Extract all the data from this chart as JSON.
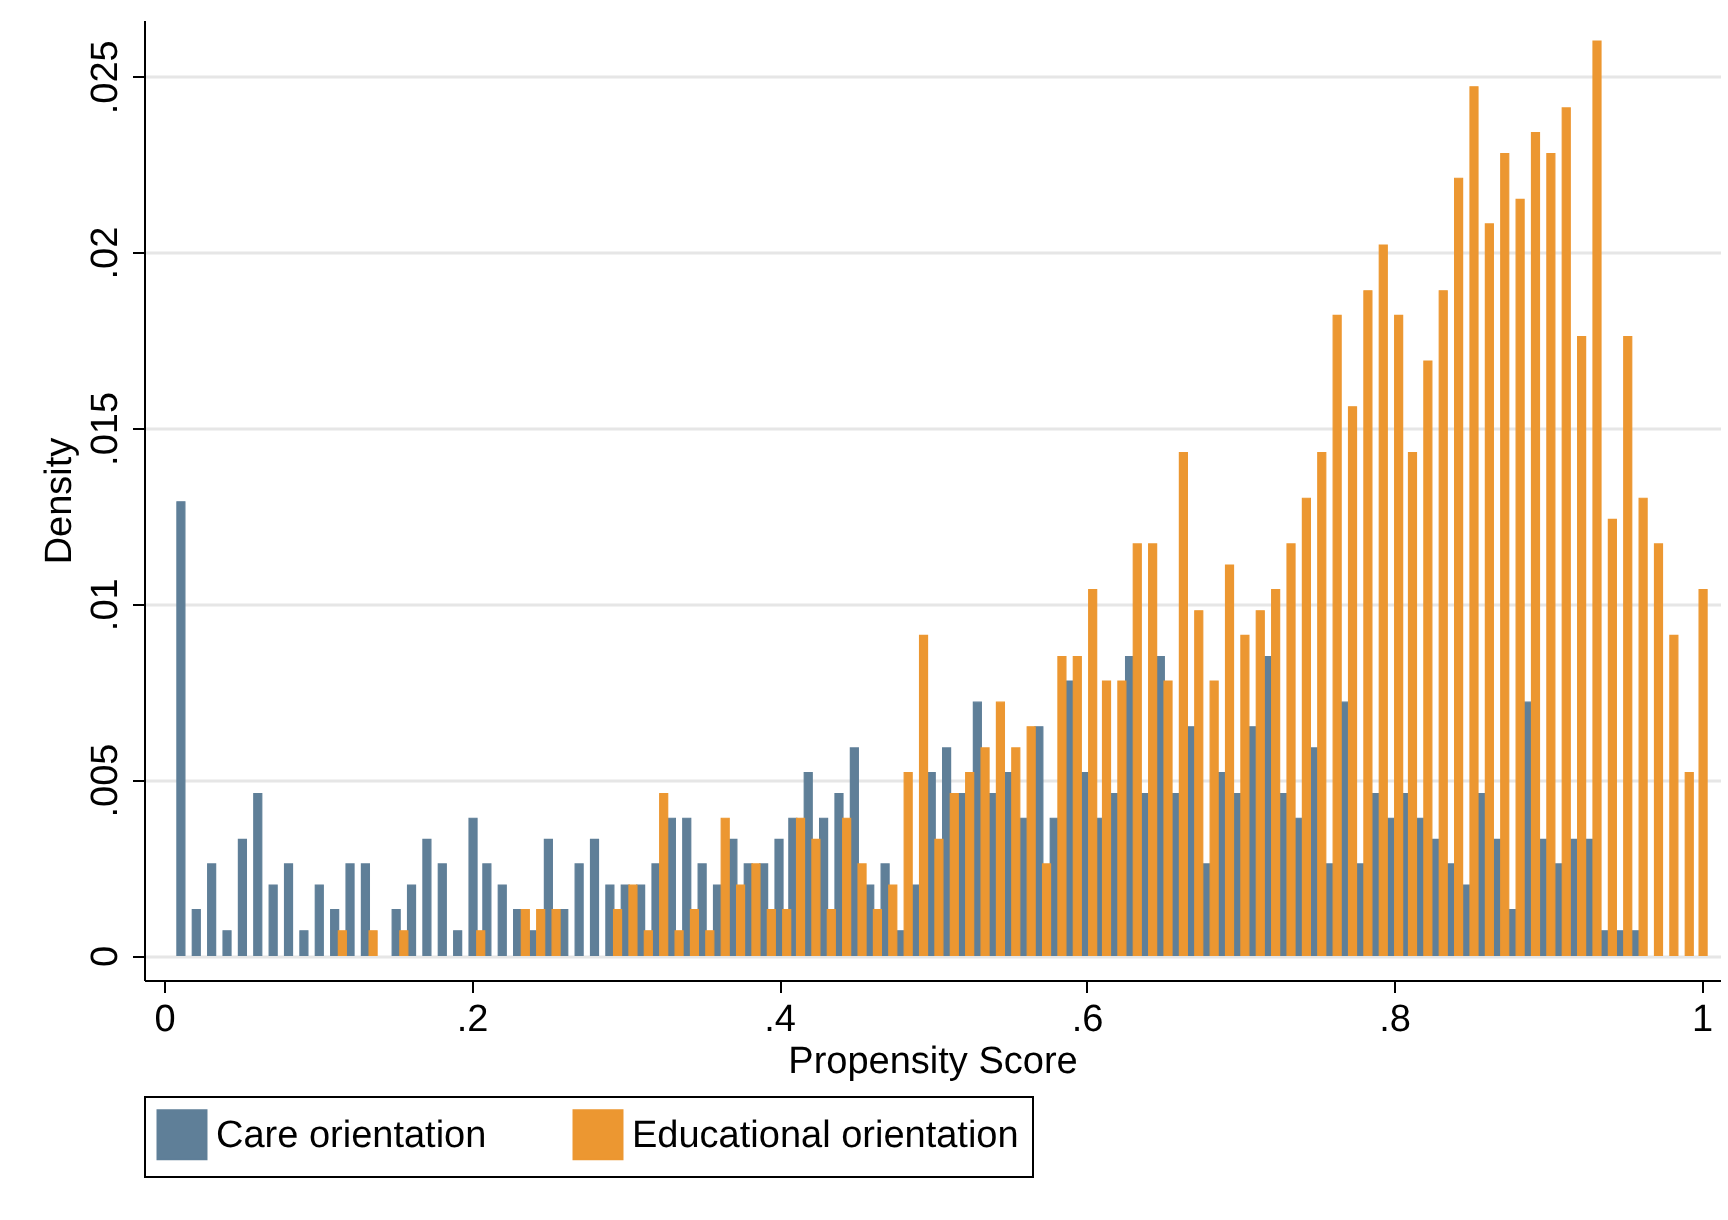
{
  "chart_data": {
    "type": "bar",
    "xlabel": "Propensity Score",
    "ylabel": "Density",
    "xlim": [
      -0.013,
      1.012
    ],
    "ylim": [
      -0.0007,
      0.0266
    ],
    "xticks": [
      0,
      {
        "value": 0.2,
        "label": ".2"
      },
      {
        "value": 0.4,
        "label": ".4"
      },
      {
        "value": 0.6,
        "label": ".6"
      },
      {
        "value": 0.8,
        "label": ".8"
      },
      1
    ],
    "yticks": [
      0,
      {
        "value": 0.005,
        "label": ".005"
      },
      {
        "value": 0.01,
        "label": ".01"
      },
      {
        "value": 0.015,
        "label": ".015"
      },
      {
        "value": 0.02,
        "label": ".02"
      },
      {
        "value": 0.025,
        "label": ".025"
      }
    ],
    "grid": "y",
    "legend": "bottom",
    "series": [
      {
        "name": "Care orientation",
        "color": "#5f7f98",
        "x": [
          0.011,
          0.021,
          0.031,
          0.041,
          0.051,
          0.061,
          0.071,
          0.081,
          0.091,
          0.101,
          0.111,
          0.121,
          0.131,
          0.151,
          0.161,
          0.171,
          0.181,
          0.191,
          0.201,
          0.21,
          0.22,
          0.23,
          0.24,
          0.25,
          0.26,
          0.27,
          0.28,
          0.29,
          0.3,
          0.31,
          0.32,
          0.33,
          0.34,
          0.35,
          0.36,
          0.37,
          0.38,
          0.39,
          0.4,
          0.409,
          0.419,
          0.429,
          0.439,
          0.449,
          0.459,
          0.469,
          0.479,
          0.489,
          0.499,
          0.509,
          0.519,
          0.529,
          0.539,
          0.549,
          0.559,
          0.569,
          0.579,
          0.589,
          0.599,
          0.608,
          0.618,
          0.628,
          0.638,
          0.648,
          0.658,
          0.668,
          0.678,
          0.688,
          0.698,
          0.708,
          0.718,
          0.728,
          0.738,
          0.748,
          0.758,
          0.768,
          0.778,
          0.788,
          0.798,
          0.807,
          0.817,
          0.827,
          0.837,
          0.847,
          0.857,
          0.867,
          0.877,
          0.887,
          0.897,
          0.907,
          0.917,
          0.927,
          0.937,
          0.947,
          0.957
        ],
        "values": [
          0.0129,
          0.0013,
          0.0026,
          0.0007,
          0.0033,
          0.0046,
          0.002,
          0.0026,
          0.0007,
          0.002,
          0.0013,
          0.0026,
          0.0026,
          0.0013,
          0.002,
          0.0033,
          0.0026,
          0.0007,
          0.0039,
          0.0026,
          0.002,
          0.0013,
          0.0007,
          0.0033,
          0.0013,
          0.0026,
          0.0033,
          0.002,
          0.002,
          0.002,
          0.0026,
          0.0039,
          0.0039,
          0.0026,
          0.002,
          0.0033,
          0.0026,
          0.0026,
          0.0033,
          0.0039,
          0.0052,
          0.0039,
          0.0046,
          0.0059,
          0.002,
          0.0026,
          0.0007,
          0.002,
          0.0052,
          0.0059,
          0.0046,
          0.0072,
          0.0046,
          0.0052,
          0.0039,
          0.0065,
          0.0039,
          0.0078,
          0.0052,
          0.0039,
          0.0046,
          0.0085,
          0.0046,
          0.0085,
          0.0046,
          0.0065,
          0.0026,
          0.0052,
          0.0046,
          0.0065,
          0.0085,
          0.0046,
          0.0039,
          0.0059,
          0.0026,
          0.0072,
          0.0026,
          0.0046,
          0.0039,
          0.0046,
          0.0039,
          0.0033,
          0.0026,
          0.002,
          0.0046,
          0.0033,
          0.0013,
          0.0072,
          0.0033,
          0.0026,
          0.0033,
          0.0033,
          0.0007,
          0.0007,
          0.0007
        ]
      },
      {
        "name": "Educational orientation",
        "color": "#ec9731",
        "x": [
          0.116,
          0.136,
          0.156,
          0.206,
          0.235,
          0.245,
          0.255,
          0.295,
          0.305,
          0.315,
          0.325,
          0.335,
          0.345,
          0.355,
          0.365,
          0.375,
          0.385,
          0.395,
          0.405,
          0.414,
          0.424,
          0.434,
          0.444,
          0.454,
          0.464,
          0.474,
          0.484,
          0.494,
          0.504,
          0.514,
          0.524,
          0.534,
          0.544,
          0.554,
          0.564,
          0.574,
          0.584,
          0.594,
          0.604,
          0.613,
          0.623,
          0.633,
          0.643,
          0.653,
          0.663,
          0.673,
          0.683,
          0.693,
          0.703,
          0.713,
          0.723,
          0.733,
          0.743,
          0.753,
          0.763,
          0.773,
          0.783,
          0.793,
          0.803,
          0.812,
          0.822,
          0.832,
          0.842,
          0.852,
          0.862,
          0.872,
          0.882,
          0.892,
          0.902,
          0.912,
          0.922,
          0.932,
          0.942,
          0.952,
          0.962,
          0.972,
          0.982,
          0.992,
          1.001
        ],
        "values": [
          0.0007,
          0.0007,
          0.0007,
          0.0007,
          0.0013,
          0.0013,
          0.0013,
          0.0013,
          0.002,
          0.0007,
          0.0046,
          0.0007,
          0.0013,
          0.0007,
          0.0039,
          0.002,
          0.0026,
          0.0013,
          0.0013,
          0.0039,
          0.0033,
          0.0013,
          0.0039,
          0.0026,
          0.0013,
          0.002,
          0.0052,
          0.0091,
          0.0033,
          0.0046,
          0.0052,
          0.0059,
          0.0072,
          0.0059,
          0.0065,
          0.0026,
          0.0085,
          0.0085,
          0.0104,
          0.0078,
          0.0078,
          0.0117,
          0.0117,
          0.0078,
          0.0143,
          0.0098,
          0.0078,
          0.0111,
          0.0091,
          0.0098,
          0.0104,
          0.0117,
          0.013,
          0.0143,
          0.0182,
          0.0156,
          0.0189,
          0.0202,
          0.0182,
          0.0143,
          0.0169,
          0.0189,
          0.0221,
          0.0247,
          0.0208,
          0.0228,
          0.0215,
          0.0234,
          0.0228,
          0.0241,
          0.0176,
          0.026,
          0.0124,
          0.0176,
          0.013,
          0.0117,
          0.0091,
          0.0052,
          0.0104
        ]
      }
    ]
  }
}
